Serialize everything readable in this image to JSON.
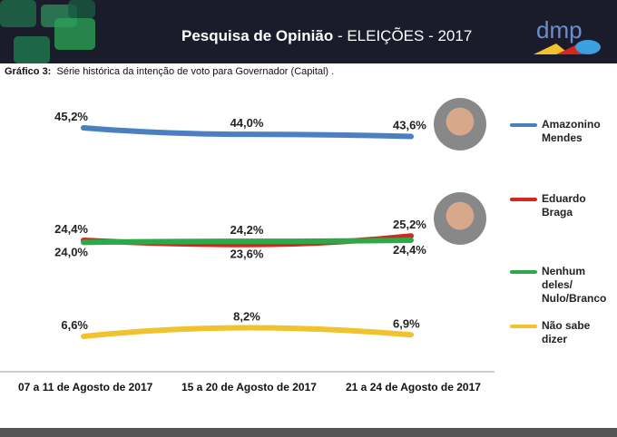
{
  "header": {
    "title_bold": "Pesquisa de Opinião",
    "title_rest": " - ELEIÇÕES -  2017",
    "logo_text": "dmp"
  },
  "subtitle": {
    "label": "Gráfico 3:",
    "text": "Série histórica da intenção de voto para Governador (Capital) ."
  },
  "chart_data": {
    "type": "line",
    "categories": [
      "07 a 11 de Agosto de 2017",
      "15 a 20 de Agosto de 2017",
      "21 a 24 de Agosto de 2017"
    ],
    "ylim": [
      0,
      50
    ],
    "grid": false,
    "legend": "right",
    "series": [
      {
        "name": "Amazonino Mendes",
        "color": "#4a7fc0",
        "values": [
          45.2,
          44.0,
          43.6
        ],
        "labels": [
          "45,2%",
          "44,0%",
          "43,6%"
        ]
      },
      {
        "name": "Eduardo Braga",
        "color": "#d9261c",
        "values": [
          24.4,
          23.6,
          25.2
        ],
        "labels": [
          "24,4%",
          "23,6%",
          "25,2%"
        ]
      },
      {
        "name": "Nenhum deles/ Nulo/Branco",
        "color": "#2ea94a",
        "values": [
          24.0,
          24.2,
          24.4
        ],
        "labels": [
          "24,0%",
          "24,2%",
          "24,4%"
        ]
      },
      {
        "name": "Não sabe dizer",
        "color": "#f2c12e",
        "values": [
          6.6,
          8.2,
          6.9
        ],
        "labels": [
          "6,6%",
          "8,2%",
          "6,9%"
        ]
      }
    ]
  }
}
